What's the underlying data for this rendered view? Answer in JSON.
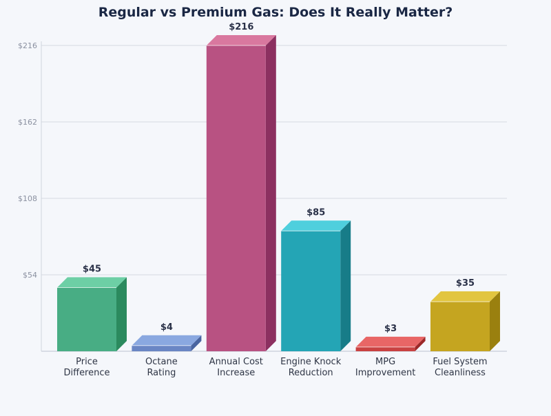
{
  "chart_data": {
    "type": "bar",
    "title": "Regular vs Premium Gas: Does It Really Matter?",
    "xlabel": "",
    "ylabel": "",
    "categories": [
      [
        "Price",
        "Difference"
      ],
      [
        "Octane",
        "Rating"
      ],
      [
        "Annual Cost",
        "Increase"
      ],
      [
        "Engine Knock",
        "Reduction"
      ],
      [
        "MPG",
        "Improvement"
      ],
      [
        "Fuel System",
        "Cleanliness"
      ]
    ],
    "values": [
      45,
      4,
      216,
      85,
      3,
      35
    ],
    "data_labels": [
      "$45",
      "$4",
      "$216",
      "$85",
      "$3",
      "$35"
    ],
    "ylim": [
      0,
      216
    ],
    "yticks": [
      54,
      108,
      162,
      216
    ],
    "ytick_labels": [
      "$54",
      "$108",
      "$162",
      "$216"
    ],
    "grid": true,
    "style": "3d-bar",
    "colors": [
      {
        "front": "#48ad84",
        "top": "#6dcfa5",
        "side": "#2b8a5e"
      },
      {
        "front": "#6a86c4",
        "top": "#8aa8e0",
        "side": "#4a65a0"
      },
      {
        "front": "#b85282",
        "top": "#d9789f",
        "side": "#8c3060"
      },
      {
        "front": "#24a5b5",
        "top": "#4fcfdd",
        "side": "#177c88"
      },
      {
        "front": "#c94242",
        "top": "#e86666",
        "side": "#9c2828"
      },
      {
        "front": "#c5a520",
        "top": "#e2c540",
        "side": "#9a800f"
      }
    ]
  }
}
